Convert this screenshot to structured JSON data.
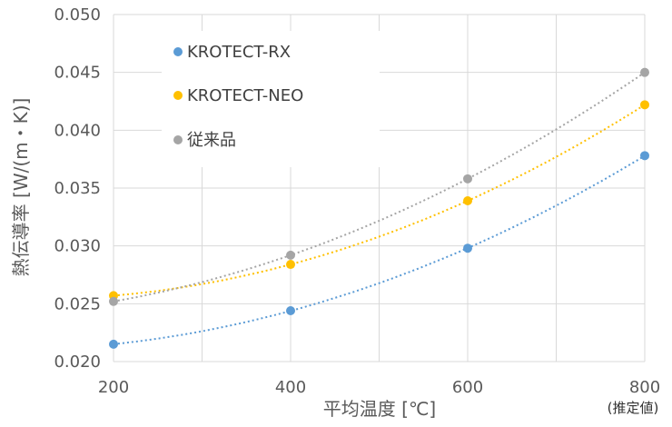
{
  "chart_data": {
    "type": "scatter",
    "xlabel": "平均温度 [℃]",
    "ylabel": "熱伝導率 [W/(m・K)]",
    "xlim": [
      200,
      800
    ],
    "ylim": [
      0.02,
      0.05
    ],
    "x_ticks": [
      200,
      400,
      600,
      800
    ],
    "x_tick_labels": [
      "200",
      "400",
      "600",
      "800"
    ],
    "x_minor_grid": [
      300,
      500,
      700
    ],
    "y_ticks": [
      0.02,
      0.025,
      0.03,
      0.035,
      0.04,
      0.045,
      0.05
    ],
    "y_tick_labels": [
      "0.020",
      "0.025",
      "0.030",
      "0.035",
      "0.040",
      "0.045",
      "0.050"
    ],
    "grid": true,
    "legend_position": "top-left",
    "trendlines": "dotted polynomial",
    "annotation": "(推定値)",
    "series": [
      {
        "name": "KROTECT-RX",
        "color": "#5b9bd5",
        "x": [
          200,
          400,
          600,
          800
        ],
        "y": [
          0.0215,
          0.0244,
          0.0298,
          0.0378
        ]
      },
      {
        "name": "KROTECT-NEO",
        "color": "#ffc000",
        "x": [
          200,
          400,
          600,
          800
        ],
        "y": [
          0.0257,
          0.0284,
          0.0339,
          0.0422
        ]
      },
      {
        "name": "従来品",
        "color": "#a5a5a5",
        "x": [
          200,
          400,
          600,
          800
        ],
        "y": [
          0.0252,
          0.0292,
          0.0358,
          0.045
        ]
      }
    ]
  }
}
